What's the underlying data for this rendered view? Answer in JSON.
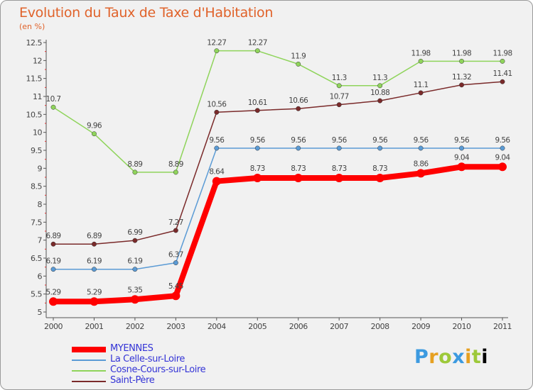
{
  "header": {
    "title": "Evolution du Taux de Taxe d'Habitation",
    "subtitle": "(en %)"
  },
  "logo": {
    "text": "Proxiti"
  },
  "chart_data": {
    "type": "line",
    "title": "Evolution du Taux de Taxe d'Habitation",
    "ylabel": "(en %)",
    "xlabel": "",
    "x": [
      "2000",
      "2001",
      "2002",
      "2003",
      "2004",
      "2005",
      "2006",
      "2007",
      "2008",
      "2009",
      "2010",
      "2011"
    ],
    "ylim": [
      5,
      12.5
    ],
    "yticks": [
      "5",
      "5.5",
      "6",
      "6.5",
      "7",
      "7.5",
      "8",
      "8.5",
      "9",
      "9.5",
      "10",
      "10.5",
      "11",
      "11.5",
      "12",
      "12.5"
    ],
    "grid": false,
    "legend_position": "bottom-left",
    "series": [
      {
        "name": "MYENNES",
        "color": "#ff0000",
        "values": [
          5.29,
          5.29,
          5.35,
          5.45,
          8.64,
          8.73,
          8.73,
          8.73,
          8.73,
          8.86,
          9.04,
          9.04
        ],
        "labels": [
          "5.29",
          "5.29",
          "5.35",
          "5.45",
          "8.64",
          "8.73",
          "8.73",
          "8.73",
          "8.73",
          "8.86",
          "9.04",
          "9.04"
        ]
      },
      {
        "name": "La Celle-sur-Loire",
        "color": "#5b9bd5",
        "values": [
          6.19,
          6.19,
          6.19,
          6.37,
          9.56,
          9.56,
          9.56,
          9.56,
          9.56,
          9.56,
          9.56,
          9.56
        ],
        "labels": [
          "6.19",
          "6.19",
          "6.19",
          "6.37",
          "9.56",
          "9.56",
          "9.56",
          "9.56",
          "9.56",
          "9.56",
          "9.56",
          "9.56"
        ]
      },
      {
        "name": "Cosne-Cours-sur-Loire",
        "color": "#8fd45b",
        "values": [
          10.7,
          9.96,
          8.89,
          8.89,
          12.27,
          12.27,
          11.9,
          11.3,
          11.3,
          11.98,
          11.98,
          11.98
        ],
        "labels": [
          "10.7",
          "9.96",
          "8.89",
          "8.89",
          "12.27",
          "12.27",
          "11.9",
          "11.3",
          "11.3",
          "11.98",
          "11.98",
          "11.98"
        ]
      },
      {
        "name": "Saint-Père",
        "color": "#7a2a2a",
        "values": [
          6.89,
          6.89,
          6.99,
          7.27,
          10.56,
          10.61,
          10.66,
          10.77,
          10.88,
          11.1,
          11.32,
          11.41
        ],
        "labels": [
          "6.89",
          "6.89",
          "6.99",
          "7.27",
          "10.56",
          "10.61",
          "10.66",
          "10.77",
          "10.88",
          "11.1",
          "11.32",
          "11.41"
        ]
      }
    ]
  }
}
